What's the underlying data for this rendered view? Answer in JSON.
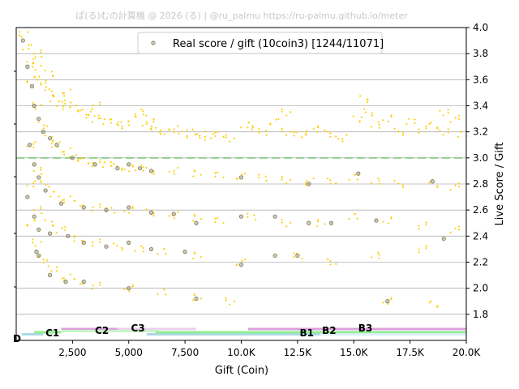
{
  "watermark": "ぱ(る)むの計算機 @ 2026 (る) | @ru_palmu  https://ru-palmu.github.io/meter",
  "chart_data": {
    "type": "scatter",
    "xlabel": "Gift (Coin)",
    "ylabel": "Live Score / Gift",
    "xlim": [
      0,
      20000
    ],
    "ylim": [
      1.6,
      4.0
    ],
    "x_ticks": [
      2500,
      5000,
      7500,
      10000,
      12500,
      15000,
      17500,
      20000
    ],
    "x_tick_labels": [
      "2,500",
      "5,000",
      "7,500",
      "10.0K",
      "12.5K",
      "15.0K",
      "17.5K",
      "20.0K"
    ],
    "y_ticks": [
      1.8,
      2.0,
      2.2,
      2.4,
      2.6,
      2.8,
      3.0,
      3.2,
      3.4,
      3.6,
      3.8,
      4.0
    ],
    "y_tick_labels": [
      "1.8",
      "2.0",
      "2.2",
      "2.4",
      "2.6",
      "2.8",
      "3.0",
      "3.2",
      "3.4",
      "3.6",
      "3.8",
      "4.0"
    ],
    "grid": "horizontal",
    "legend": {
      "position": "top-center",
      "label": "Real score / gift (10coin3) [1244/11071]"
    },
    "reference_line": {
      "y": 3.0,
      "color": "#90d090",
      "style": "dashed"
    },
    "colors": {
      "estimate": "#ffcc00",
      "real": "#807a40"
    },
    "series": [
      {
        "name": "estimated",
        "points": [
          [
            300,
            3.95
          ],
          [
            500,
            3.85
          ],
          [
            700,
            3.75
          ],
          [
            900,
            3.7
          ],
          [
            1100,
            3.6
          ],
          [
            1300,
            3.55
          ],
          [
            1500,
            3.5
          ],
          [
            1700,
            3.45
          ],
          [
            2000,
            3.42
          ],
          [
            2300,
            3.4
          ],
          [
            2600,
            3.38
          ],
          [
            3000,
            3.35
          ],
          [
            3300,
            3.33
          ],
          [
            3600,
            3.3
          ],
          [
            4000,
            3.28
          ],
          [
            4400,
            3.27
          ],
          [
            4800,
            3.25
          ],
          [
            5200,
            3.3
          ],
          [
            5500,
            3.35
          ],
          [
            5800,
            3.25
          ],
          [
            6200,
            3.22
          ],
          [
            6600,
            3.2
          ],
          [
            7000,
            3.22
          ],
          [
            7400,
            3.18
          ],
          [
            7800,
            3.2
          ],
          [
            8200,
            3.18
          ],
          [
            8600,
            3.16
          ],
          [
            9000,
            3.18
          ],
          [
            9500,
            3.15
          ],
          [
            10200,
            3.25
          ],
          [
            10600,
            3.22
          ],
          [
            11000,
            3.2
          ],
          [
            11500,
            3.28
          ],
          [
            12000,
            3.2
          ],
          [
            12500,
            3.18
          ],
          [
            13000,
            3.2
          ],
          [
            13500,
            3.22
          ],
          [
            14000,
            3.18
          ],
          [
            14500,
            3.15
          ],
          [
            15200,
            3.3
          ],
          [
            15600,
            3.35
          ],
          [
            16000,
            3.25
          ],
          [
            16500,
            3.3
          ],
          [
            17000,
            3.2
          ],
          [
            17500,
            3.28
          ],
          [
            18000,
            3.22
          ],
          [
            18500,
            3.25
          ],
          [
            19000,
            3.2
          ],
          [
            19500,
            3.3
          ],
          [
            19800,
            3.18
          ],
          [
            1000,
            3.8
          ],
          [
            1500,
            3.65
          ],
          [
            2200,
            3.5
          ],
          [
            3500,
            3.4
          ],
          [
            6000,
            3.3
          ],
          [
            12000,
            3.35
          ],
          [
            15500,
            3.45
          ],
          [
            19000,
            3.35
          ],
          [
            600,
            3.6
          ],
          [
            900,
            3.4
          ],
          [
            1200,
            3.25
          ],
          [
            1500,
            3.15
          ],
          [
            1800,
            3.1
          ],
          [
            2200,
            3.05
          ],
          [
            2600,
            3.0
          ],
          [
            3000,
            2.98
          ],
          [
            3500,
            2.96
          ],
          [
            4000,
            2.95
          ],
          [
            4500,
            2.93
          ],
          [
            5000,
            2.92
          ],
          [
            5500,
            2.92
          ],
          [
            6000,
            2.9
          ],
          [
            7000,
            2.9
          ],
          [
            8000,
            2.88
          ],
          [
            9000,
            2.87
          ],
          [
            10000,
            2.86
          ],
          [
            11000,
            2.85
          ],
          [
            12000,
            2.83
          ],
          [
            13000,
            2.82
          ],
          [
            14000,
            2.82
          ],
          [
            15000,
            2.85
          ],
          [
            16000,
            2.82
          ],
          [
            17000,
            2.8
          ],
          [
            18500,
            2.8
          ],
          [
            19500,
            2.78
          ],
          [
            700,
            3.1
          ],
          [
            1000,
            2.9
          ],
          [
            1300,
            2.8
          ],
          [
            1700,
            2.72
          ],
          [
            2200,
            2.68
          ],
          [
            2800,
            2.65
          ],
          [
            3500,
            2.62
          ],
          [
            4200,
            2.6
          ],
          [
            5000,
            2.6
          ],
          [
            6000,
            2.58
          ],
          [
            7000,
            2.56
          ],
          [
            8000,
            2.54
          ],
          [
            9000,
            2.52
          ],
          [
            10500,
            2.55
          ],
          [
            12000,
            2.5
          ],
          [
            13500,
            2.5
          ],
          [
            15000,
            2.55
          ],
          [
            16500,
            2.52
          ],
          [
            18000,
            2.48
          ],
          [
            19500,
            2.45
          ],
          [
            700,
            2.8
          ],
          [
            1000,
            2.6
          ],
          [
            1500,
            2.5
          ],
          [
            2000,
            2.45
          ],
          [
            2700,
            2.38
          ],
          [
            3500,
            2.35
          ],
          [
            4500,
            2.32
          ],
          [
            5500,
            2.3
          ],
          [
            6500,
            2.28
          ],
          [
            8000,
            2.25
          ],
          [
            10000,
            2.2
          ],
          [
            12500,
            2.25
          ],
          [
            14000,
            2.2
          ],
          [
            16000,
            2.25
          ],
          [
            18000,
            2.3
          ],
          [
            600,
            2.5
          ],
          [
            900,
            2.35
          ],
          [
            1200,
            2.22
          ],
          [
            1600,
            2.15
          ],
          [
            2200,
            2.08
          ],
          [
            2800,
            2.05
          ],
          [
            3500,
            2.02
          ],
          [
            5000,
            2.0
          ],
          [
            6500,
            1.97
          ],
          [
            8000,
            1.93
          ],
          [
            9500,
            1.9
          ],
          [
            16500,
            1.9
          ],
          [
            18500,
            1.88
          ]
        ]
      },
      {
        "name": "Real score / gift (10coin3) [1244/11071]",
        "points": [
          [
            300,
            3.9
          ],
          [
            500,
            3.7
          ],
          [
            700,
            3.55
          ],
          [
            800,
            3.4
          ],
          [
            1000,
            3.3
          ],
          [
            1200,
            3.2
          ],
          [
            1500,
            3.15
          ],
          [
            1800,
            3.1
          ],
          [
            2500,
            3.0
          ],
          [
            3500,
            2.95
          ],
          [
            4500,
            2.92
          ],
          [
            5000,
            2.95
          ],
          [
            5500,
            2.92
          ],
          [
            6000,
            2.9
          ],
          [
            10000,
            2.85
          ],
          [
            13000,
            2.8
          ],
          [
            15200,
            2.88
          ],
          [
            18500,
            2.82
          ],
          [
            600,
            3.1
          ],
          [
            800,
            2.95
          ],
          [
            1000,
            2.85
          ],
          [
            1300,
            2.75
          ],
          [
            2000,
            2.65
          ],
          [
            3000,
            2.62
          ],
          [
            4000,
            2.6
          ],
          [
            5000,
            2.62
          ],
          [
            6000,
            2.58
          ],
          [
            7000,
            2.57
          ],
          [
            8000,
            2.5
          ],
          [
            10000,
            2.55
          ],
          [
            11500,
            2.55
          ],
          [
            13000,
            2.5
          ],
          [
            14000,
            2.5
          ],
          [
            16000,
            2.52
          ],
          [
            500,
            2.7
          ],
          [
            800,
            2.55
          ],
          [
            1000,
            2.45
          ],
          [
            1500,
            2.42
          ],
          [
            2300,
            2.4
          ],
          [
            3000,
            2.35
          ],
          [
            4000,
            2.32
          ],
          [
            5000,
            2.35
          ],
          [
            6000,
            2.3
          ],
          [
            7500,
            2.28
          ],
          [
            10000,
            2.18
          ],
          [
            11500,
            2.25
          ],
          [
            12500,
            2.25
          ],
          [
            19000,
            2.38
          ],
          [
            900,
            2.28
          ],
          [
            1000,
            2.25
          ],
          [
            1500,
            2.1
          ],
          [
            2200,
            2.05
          ],
          [
            3000,
            2.05
          ],
          [
            5000,
            2.0
          ],
          [
            8000,
            1.92
          ],
          [
            16500,
            1.9
          ]
        ]
      }
    ],
    "rank_bands": [
      {
        "x0": 250,
        "x1": 1200,
        "level": 3,
        "color": "#add8e6"
      },
      {
        "x0": 800,
        "x1": 2000,
        "level": 2,
        "color": "#90ee90"
      },
      {
        "x0": 2000,
        "x1": 4500,
        "level": 0,
        "color": "#dda0dd"
      },
      {
        "x0": 4500,
        "x1": 8000,
        "level": 0,
        "color": "#ecd0ec"
      },
      {
        "x0": 2000,
        "x1": 6300,
        "level": 1,
        "color": "#c8f5c8"
      },
      {
        "x0": 5800,
        "x1": 13500,
        "level": 3,
        "color": "#add8e6"
      },
      {
        "x0": 6200,
        "x1": 20000,
        "level": 2,
        "color": "#90ee90"
      },
      {
        "x0": 10300,
        "x1": 20000,
        "level": 0,
        "color": "#dda0dd"
      },
      {
        "x0": 13500,
        "x1": 20000,
        "level": 3,
        "color": "#d8eef4"
      }
    ],
    "rank_labels": [
      {
        "text": "D",
        "x": 0,
        "level": 4
      },
      {
        "text": "C1",
        "x": 1300,
        "level": 2
      },
      {
        "text": "C2",
        "x": 3500,
        "level": 1
      },
      {
        "text": "C3",
        "x": 5100,
        "level": 0
      },
      {
        "text": "B2",
        "x": 13300,
        "level": 1
      },
      {
        "text": "B1",
        "x": 13100,
        "level": 2
      },
      {
        "text": "B3",
        "x": 15200,
        "level": 0
      }
    ]
  }
}
